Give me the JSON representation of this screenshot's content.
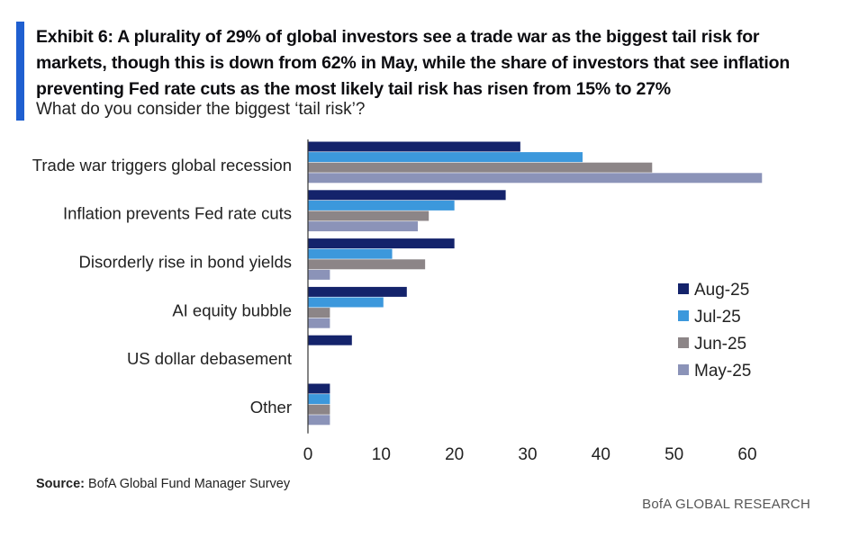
{
  "header": {
    "title": "Exhibit 6: A plurality of 29% of global investors see a trade war as the biggest tail risk for markets, though this is down from 62% in May, while the share of investors that see inflation preventing Fed rate cuts as the most likely tail risk has risen from 15% to 27%",
    "subtitle": "What do you consider the biggest ‘tail risk’?",
    "accent_color": "#1f5fd0"
  },
  "chart_data": {
    "type": "bar",
    "orientation": "horizontal",
    "categories": [
      "Trade war triggers global recession",
      "Inflation prevents Fed rate cuts",
      "Disorderly rise in bond yields",
      "AI equity bubble",
      "US dollar debasement",
      "Other"
    ],
    "series": [
      {
        "name": "Aug-25",
        "color": "#14236b",
        "values": [
          29,
          27,
          20,
          13.5,
          6,
          3
        ]
      },
      {
        "name": "Jul-25",
        "color": "#3c98dc",
        "values": [
          37.5,
          20,
          11.5,
          10.3,
          0,
          3
        ]
      },
      {
        "name": "Jun-25",
        "color": "#8c8587",
        "values": [
          47,
          16.5,
          16,
          3,
          0,
          3
        ]
      },
      {
        "name": "May-25",
        "color": "#8b93b8",
        "values": [
          62,
          15,
          3,
          3,
          0,
          3
        ]
      }
    ],
    "xlim": [
      0,
      60
    ],
    "xticks": [
      0,
      10,
      20,
      30,
      40,
      50,
      60
    ],
    "xlabel": "",
    "ylabel": "",
    "legend_position": "right",
    "grid": false
  },
  "footer": {
    "source_label": "Source:",
    "source_text": " BofA Global Fund Manager Survey",
    "brand": "BofA GLOBAL RESEARCH"
  }
}
